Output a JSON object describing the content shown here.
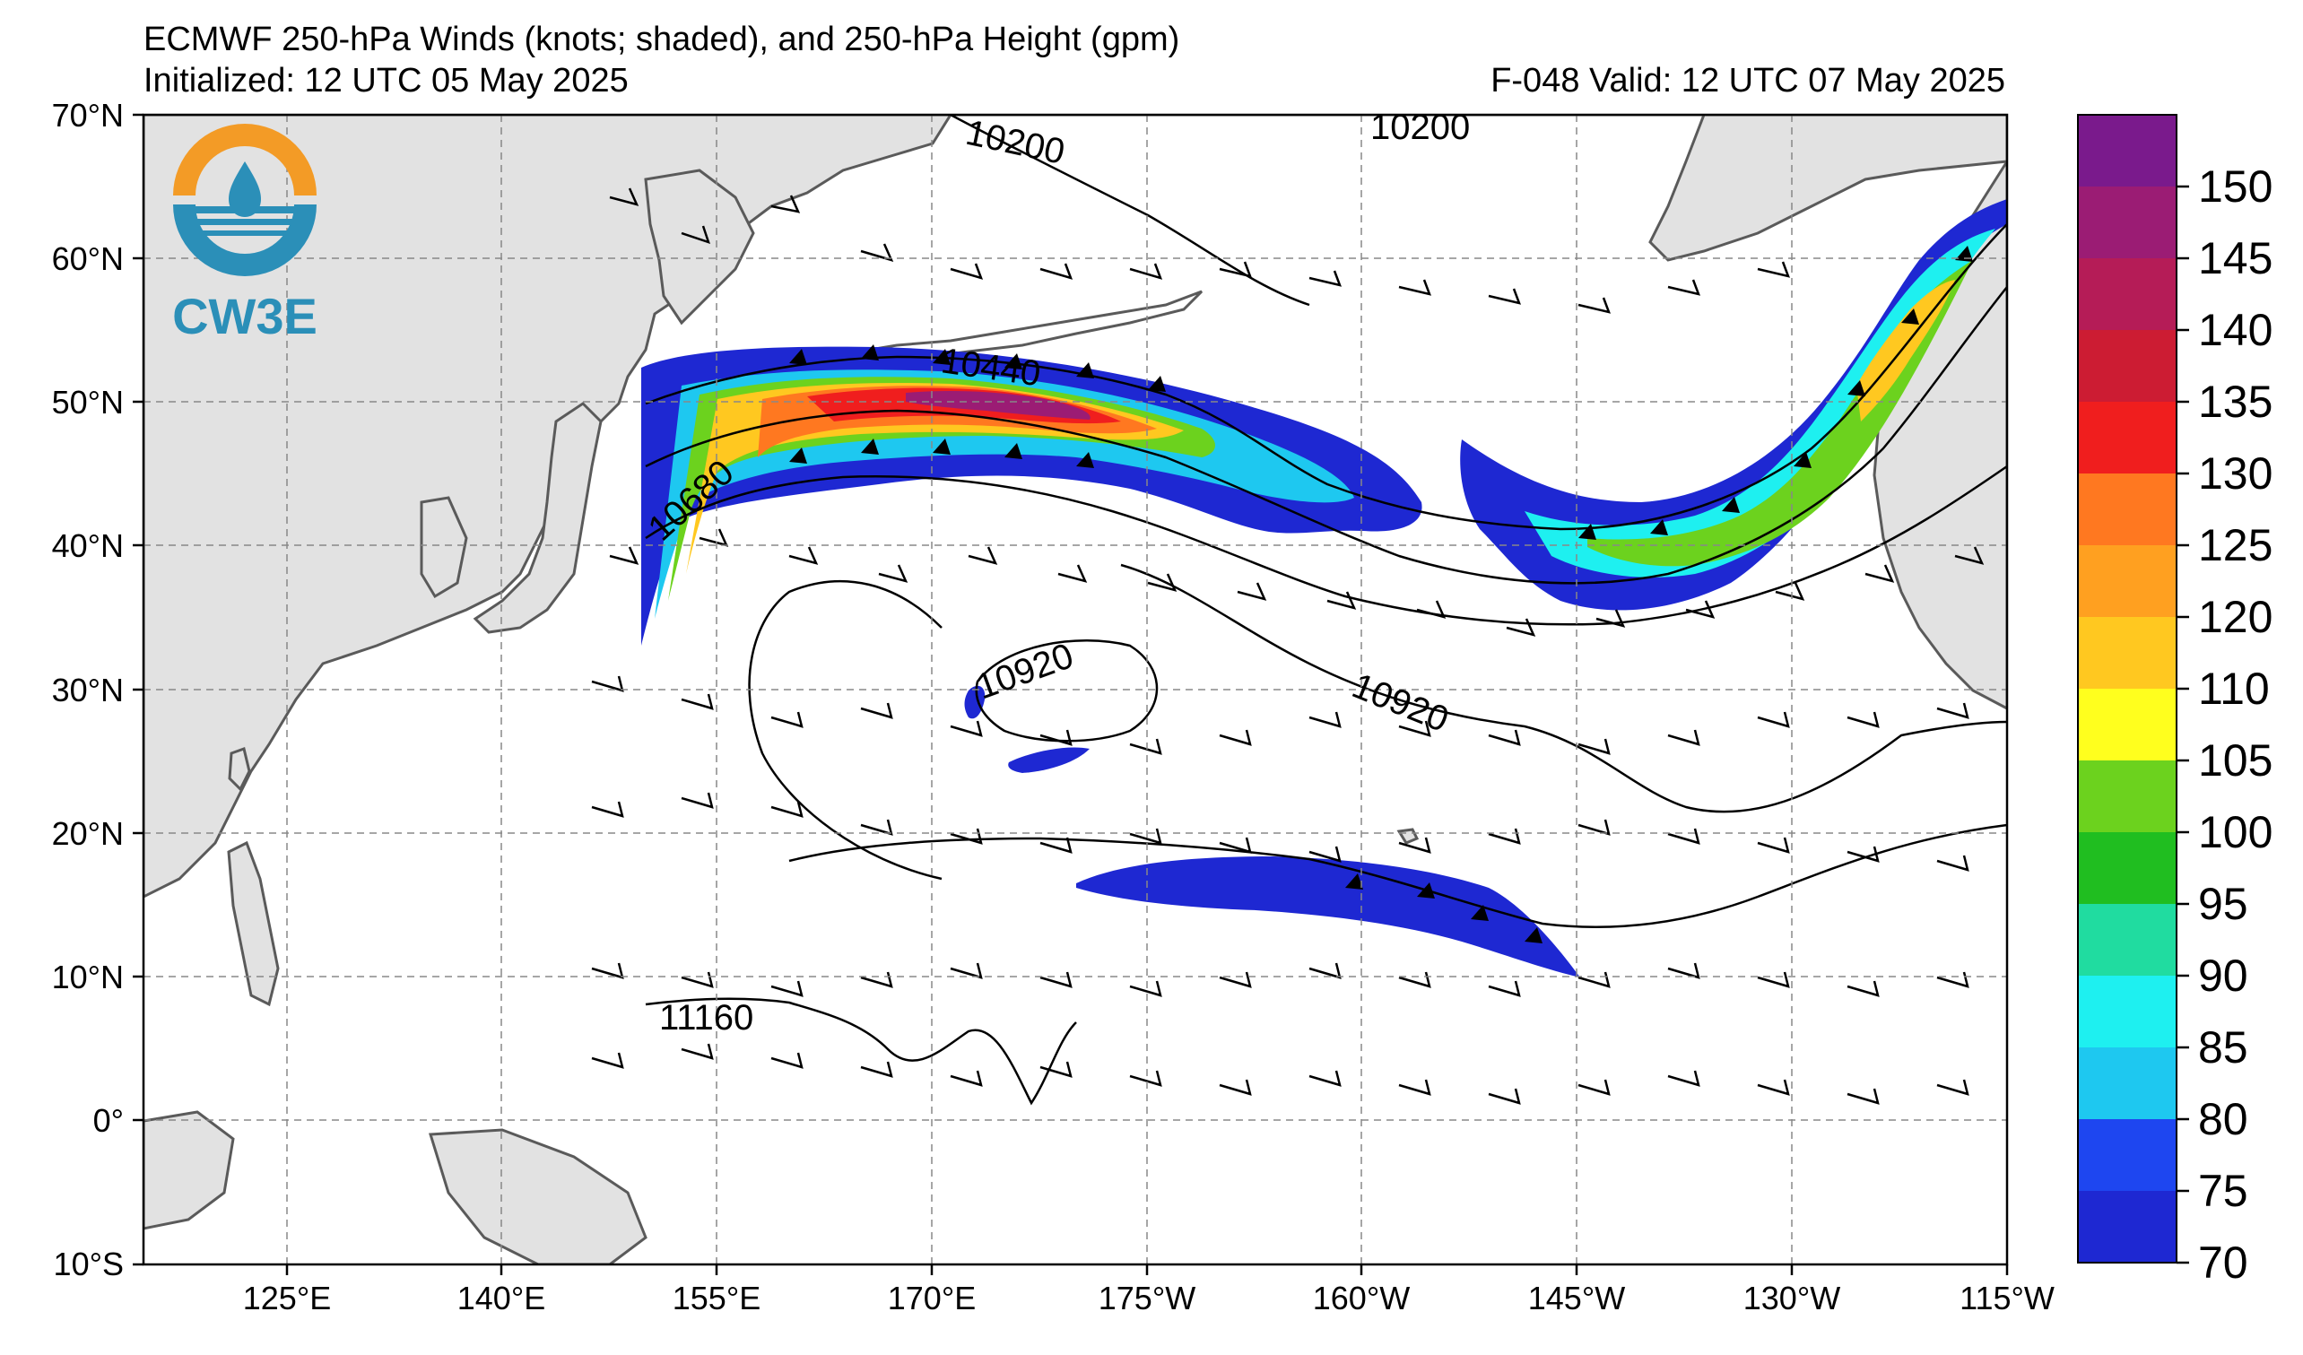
{
  "header": {
    "title": "ECMWF 250-hPa Winds (knots; shaded), and 250-hPa Height (gpm)",
    "initialized": "Initialized: 12 UTC 05 May 2025",
    "valid": "F-048  Valid: 12 UTC 07 May 2025"
  },
  "logo": {
    "text": "CW3E",
    "colors": {
      "top": "#f39b26",
      "bottom": "#2b8fb8"
    }
  },
  "axes": {
    "lat_labels": [
      "70°N",
      "60°N",
      "50°N",
      "40°N",
      "30°N",
      "20°N",
      "10°N",
      "0°",
      "10°S"
    ],
    "lon_labels": [
      "125°E",
      "140°E",
      "155°E",
      "170°E",
      "175°W",
      "160°W",
      "145°W",
      "130°W",
      "115°W"
    ]
  },
  "contours": {
    "labels": [
      "10200",
      "10200",
      "10440",
      "10680",
      "10920",
      "10920",
      "11160"
    ]
  },
  "colorbar": {
    "ticks": [
      "150",
      "145",
      "140",
      "135",
      "130",
      "125",
      "120",
      "110",
      "105",
      "100",
      "95",
      "90",
      "85",
      "80",
      "75",
      "70"
    ],
    "colors": [
      "#7a1a8c",
      "#9b1c74",
      "#b51c57",
      "#cc1c33",
      "#f01e1e",
      "#ff7820",
      "#ffa020",
      "#ffc820",
      "#ffff1e",
      "#6cd21e",
      "#20be20",
      "#20dca0",
      "#1ef0f0",
      "#1ec8f0",
      "#1e46f0",
      "#1e28d2"
    ]
  },
  "land_color": "#e2e2e2"
}
